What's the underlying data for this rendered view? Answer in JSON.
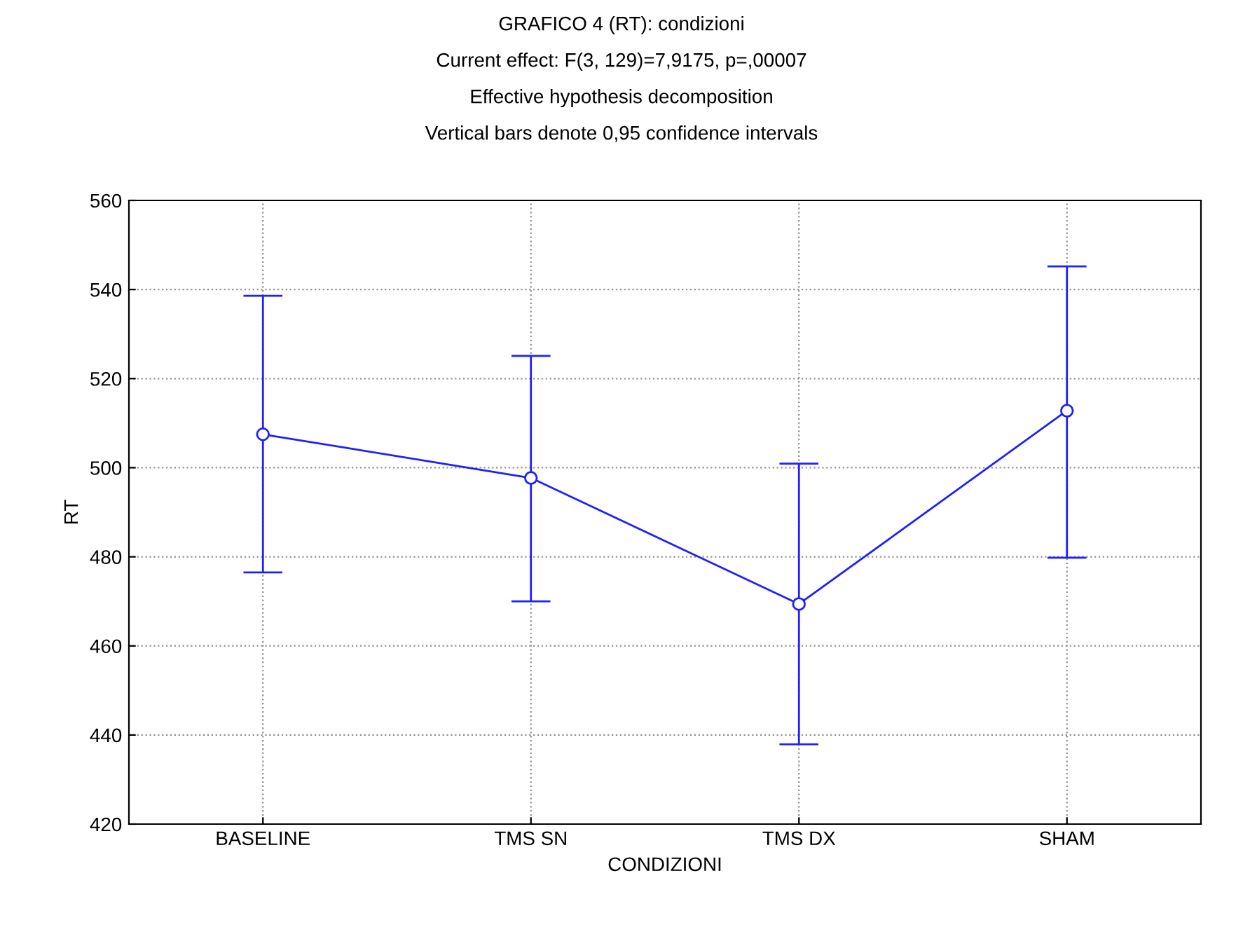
{
  "chart_data": {
    "type": "line",
    "title": "GRAFICO 4 (RT): condizioni",
    "subtitle": "Current effect: F(3, 129)=7,9175, p=,00007",
    "annotations": [
      "Effective hypothesis decomposition",
      "Vertical bars denote 0,95 confidence intervals"
    ],
    "xlabel": "CONDIZIONI",
    "ylabel": "RT",
    "categories": [
      "BASELINE",
      "TMS SN",
      "TMS DX",
      "SHAM"
    ],
    "series": [
      {
        "color": "#1f1fff",
        "values": [
          507.5,
          497.7,
          469.4,
          512.8
        ],
        "errors": [
          [
            476.5,
            538.6
          ],
          [
            470.0,
            525.1
          ],
          [
            437.9,
            500.9
          ],
          [
            479.8,
            545.2
          ]
        ]
      }
    ],
    "ylim": [
      420,
      560
    ],
    "yticks": [
      420,
      440,
      460,
      480,
      500,
      520,
      540,
      560
    ],
    "grid": true,
    "marker": "circle",
    "line_style": "solid"
  }
}
